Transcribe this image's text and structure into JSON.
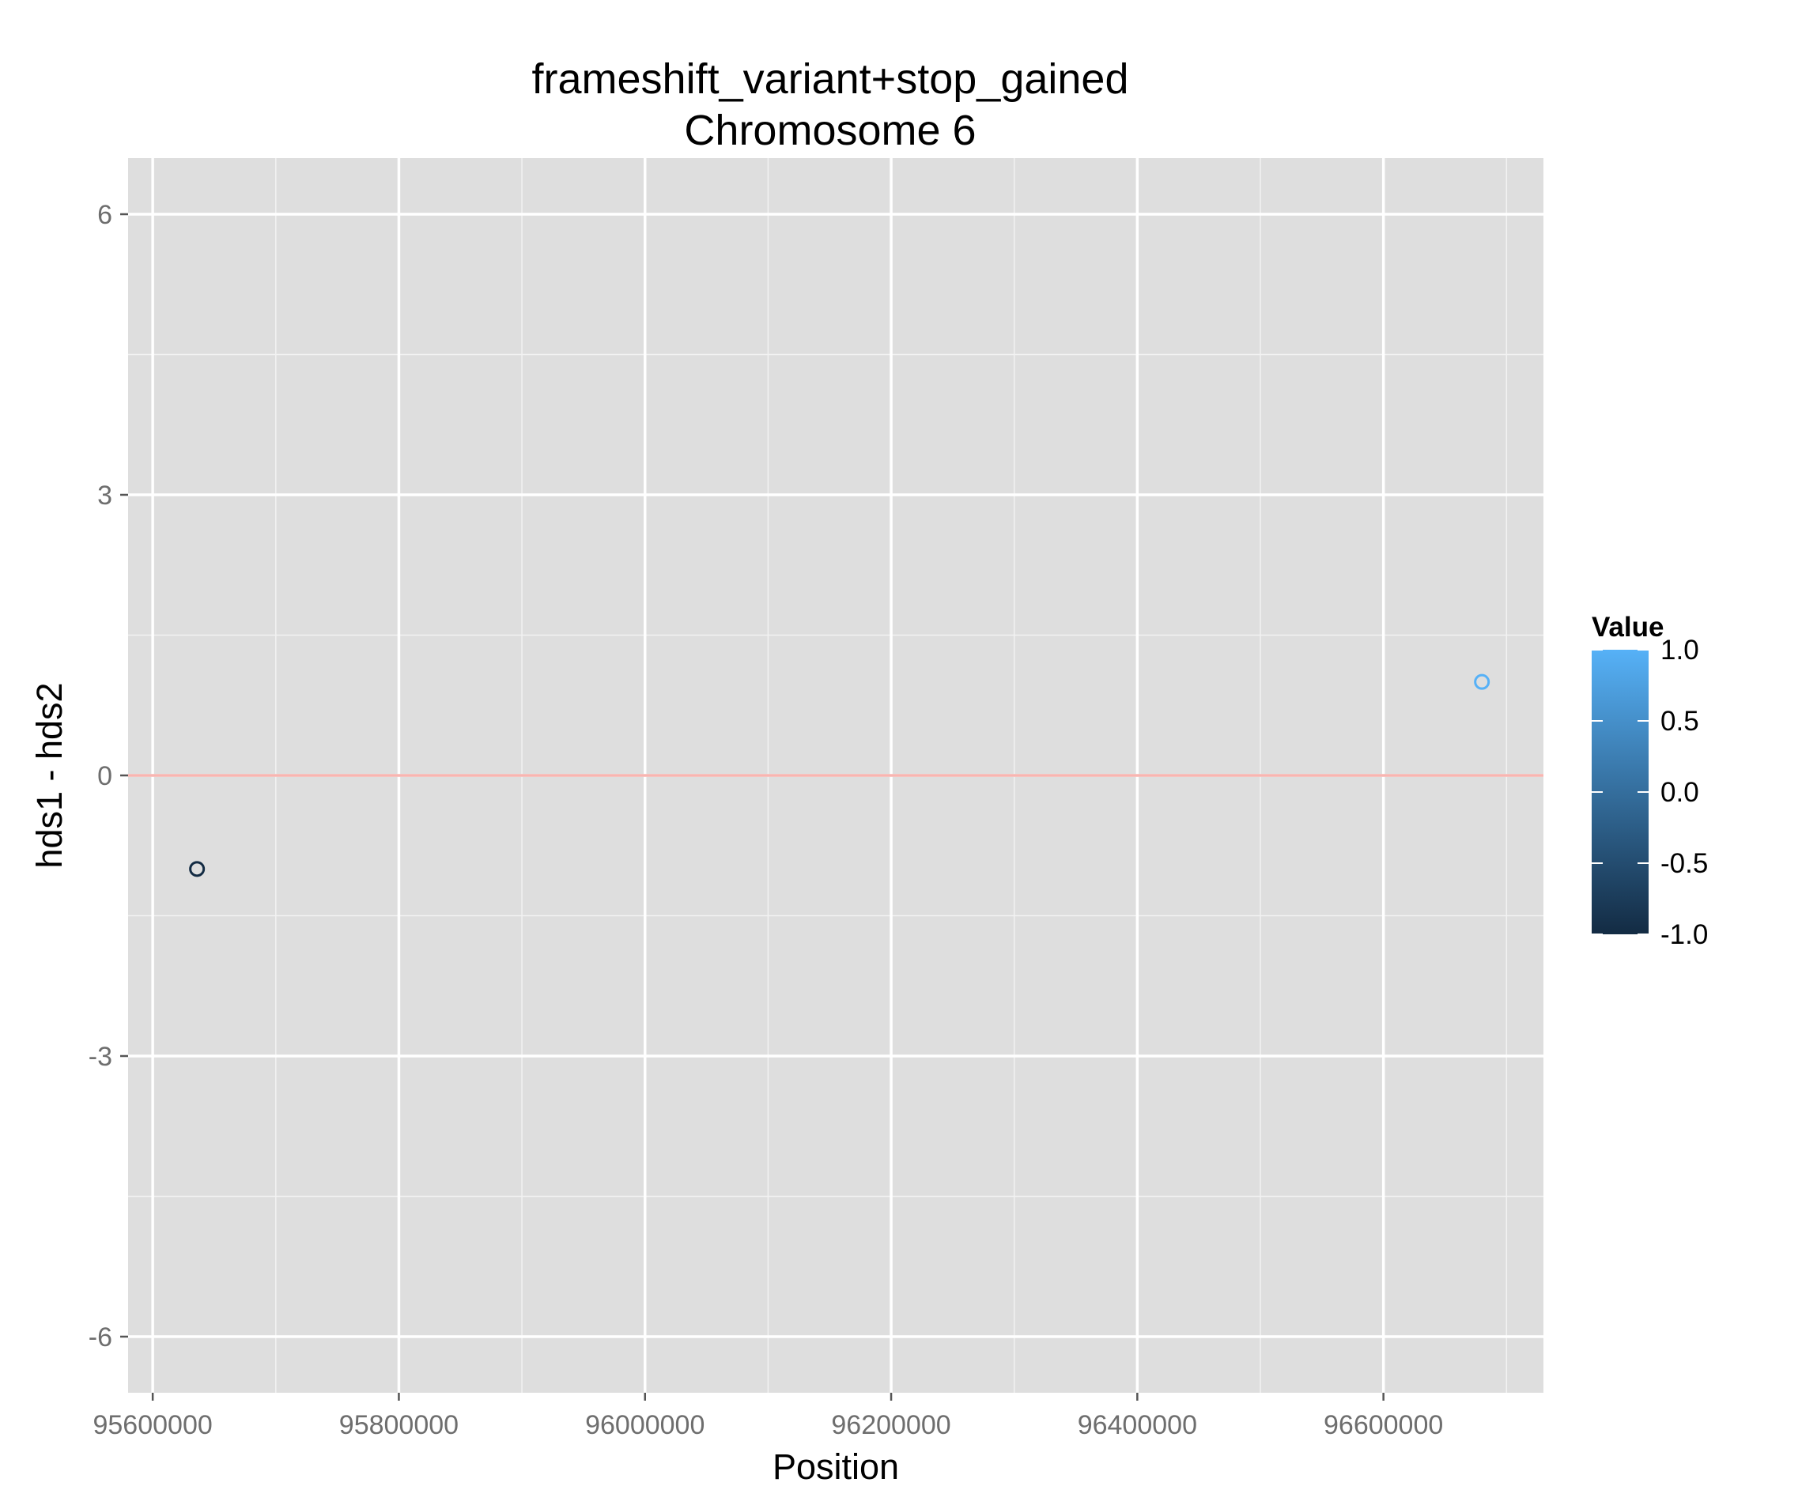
{
  "chart_data": {
    "type": "scatter",
    "title": "frameshift_variant+stop_gained",
    "subtitle": "Chromosome 6",
    "xlabel": "Position",
    "ylabel": "hds1 - hds2",
    "xlim": [
      95580000,
      96730000
    ],
    "ylim": [
      -6.6,
      6.6
    ],
    "x_ticks": [
      95600000,
      95800000,
      96000000,
      96200000,
      96400000,
      96600000
    ],
    "x_tick_labels": [
      "95600000",
      "95800000",
      "96000000",
      "96200000",
      "96400000",
      "96600000"
    ],
    "x_minor_ticks": [
      95700000,
      95900000,
      96100000,
      96300000,
      96500000,
      96700000
    ],
    "y_ticks": [
      -6,
      -3,
      0,
      3,
      6
    ],
    "y_tick_labels": [
      "-6",
      "-3",
      "0",
      "3",
      "6"
    ],
    "y_minor_ticks": [
      -4.5,
      -1.5,
      1.5,
      4.5
    ],
    "points": [
      {
        "x": 95636000,
        "y": -1,
        "value": -1
      },
      {
        "x": 96680000,
        "y": 1,
        "value": 1
      }
    ],
    "reference_line": {
      "y": 0,
      "color": "#f8b5b1"
    },
    "grid": true,
    "panel_background": "#dedede",
    "legend": {
      "title": "Value",
      "position": "right",
      "type": "colorbar",
      "range": [
        -1,
        1
      ],
      "breaks": [
        1.0,
        0.5,
        0.0,
        -0.5,
        -1.0
      ],
      "labels": [
        "1.0",
        "0.5",
        "0.0",
        "-0.5",
        "-1.0"
      ],
      "low_color": "#132b43",
      "high_color": "#56b1f7"
    }
  }
}
